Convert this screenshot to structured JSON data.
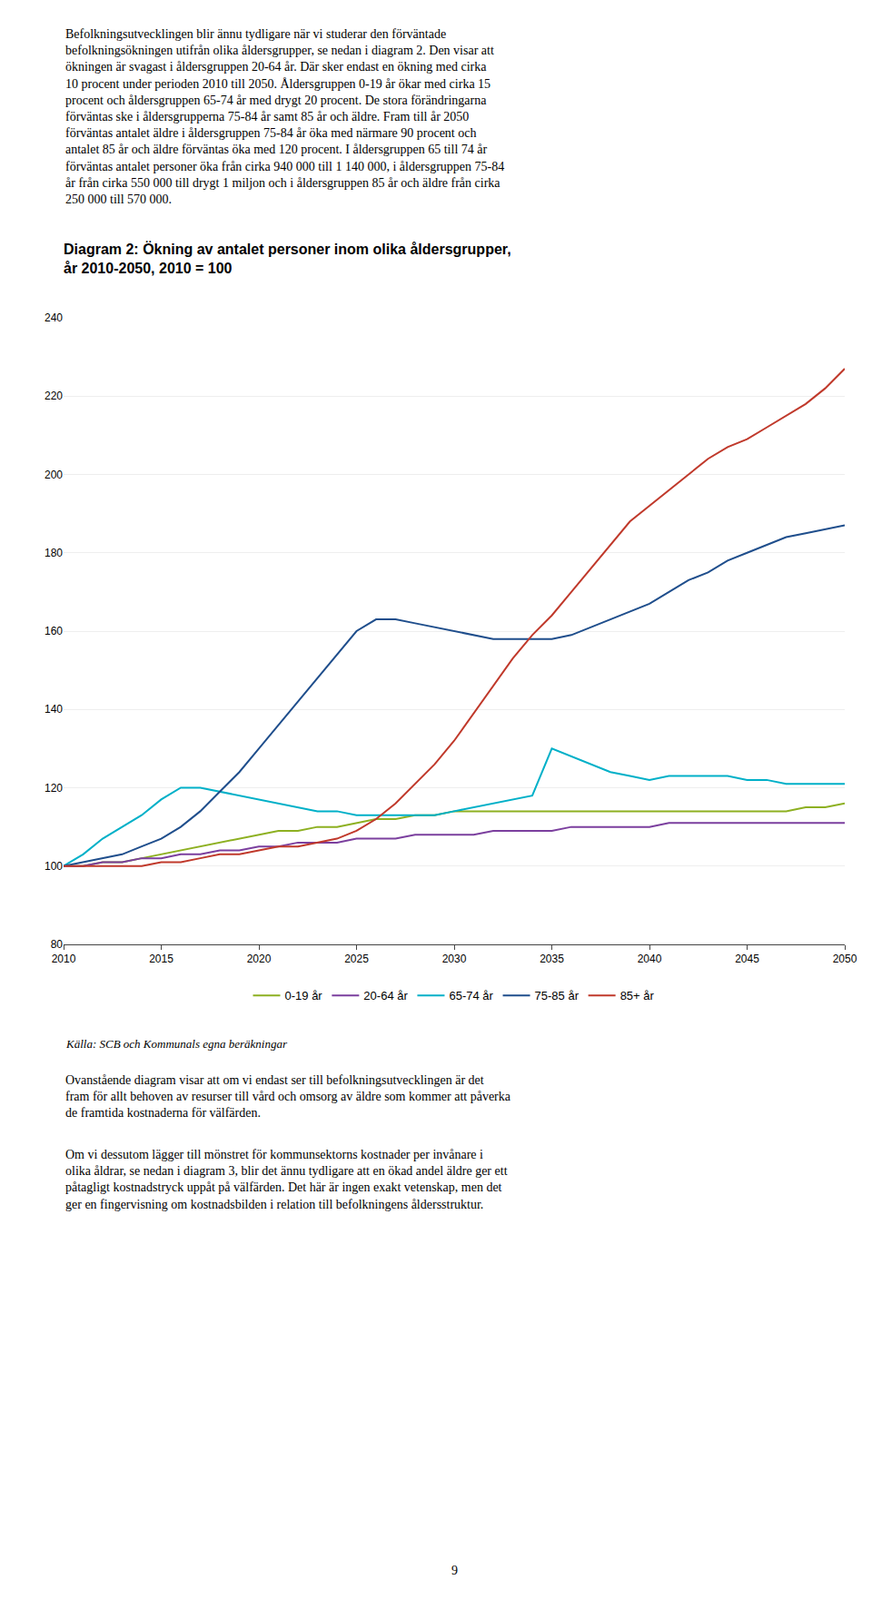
{
  "chart_data": {
    "type": "line",
    "title": "Diagram 2: Ökning av antalet personer inom olika åldersgrupper,",
    "subtitle": "år 2010-2050, 2010 = 100",
    "annotations": [
      "Befolkningsutvecklingen blir ännu tydligare när vi studerar den förväntade\nbefolkningsökningen utifrån olika åldersgrupper, se nedan i diagram 2. Den visar att\nökningen är svagast i åldersgruppen 20-64 år. Där sker endast en ökning med cirka\n10 procent under perioden 2010 till 2050. Åldersgruppen 0-19 år ökar med cirka 15\nprocent och åldersgruppen 65-74 år med drygt 20 procent. De stora förändringarna\nförväntas ske i åldersgrupperna 75-84 år samt 85 år och äldre. Fram till år 2050\nförväntas antalet äldre i åldersgruppen 75-84 år öka med närmare 90 procent och\nantalet 85 år och äldre förväntas öka med 120 procent. I åldersgruppen 65 till 74 år\nförväntas antalet personer öka från cirka 940 000 till 1 140 000, i åldersgruppen 75-84\når från cirka 550 000 till drygt 1 miljon och i åldersgruppen 85 år och äldre från cirka\n250 000 till 570 000.",
      "Källa: SCB och Kommunals egna beräkningar",
      "Ovanstående diagram visar att om vi endast ser till befolkningsutvecklingen är det\nfram för allt behoven av resurser till vård och omsorg av äldre som kommer att påverka\nde framtida kostnaderna för välfärden.",
      "Om vi dessutom lägger till mönstret för kommunsektorns kostnader per invånare i\nolika åldrar, se nedan i diagram 3, blir det ännu tydligare att en ökad andel äldre ger ett\npåtagligt kostnadstryck uppåt på välfärden. Det här är ingen exakt vetenskap, men det\nger en fingervisning om kostnadsbilden i relation till befolkningens åldersstruktur.",
      "9"
    ],
    "x": [
      2010,
      2011,
      2012,
      2013,
      2014,
      2015,
      2016,
      2017,
      2018,
      2019,
      2020,
      2021,
      2022,
      2023,
      2024,
      2025,
      2026,
      2027,
      2028,
      2029,
      2030,
      2031,
      2032,
      2033,
      2034,
      2035,
      2036,
      2037,
      2038,
      2039,
      2040,
      2041,
      2042,
      2043,
      2044,
      2045,
      2046,
      2047,
      2048,
      2049,
      2050
    ],
    "series": [
      {
        "name": "0-19 år",
        "color": "#8db021",
        "values": [
          100,
          100,
          101,
          101,
          102,
          103,
          104,
          105,
          106,
          107,
          108,
          109,
          109,
          110,
          110,
          111,
          112,
          112,
          113,
          113,
          114,
          114,
          114,
          114,
          114,
          114,
          114,
          114,
          114,
          114,
          114,
          114,
          114,
          114,
          114,
          114,
          114,
          114,
          115,
          115,
          116
        ]
      },
      {
        "name": "20-64 år",
        "color": "#7b3f9e",
        "values": [
          100,
          100,
          101,
          101,
          102,
          102,
          103,
          103,
          104,
          104,
          105,
          105,
          106,
          106,
          106,
          107,
          107,
          107,
          108,
          108,
          108,
          108,
          109,
          109,
          109,
          109,
          110,
          110,
          110,
          110,
          110,
          111,
          111,
          111,
          111,
          111,
          111,
          111,
          111,
          111,
          111
        ]
      },
      {
        "name": "65-74 år",
        "color": "#00b0c8",
        "values": [
          100,
          103,
          107,
          110,
          113,
          117,
          120,
          120,
          119,
          118,
          117,
          116,
          115,
          114,
          114,
          113,
          113,
          113,
          113,
          113,
          114,
          115,
          116,
          117,
          118,
          130,
          128,
          126,
          124,
          123,
          122,
          123,
          123,
          123,
          123,
          122,
          122,
          121,
          121,
          121,
          121
        ]
      },
      {
        "name": "75-85 år",
        "color": "#1f4e8c",
        "values": [
          100,
          101,
          102,
          103,
          105,
          107,
          110,
          114,
          119,
          124,
          130,
          136,
          142,
          148,
          154,
          160,
          163,
          163,
          162,
          161,
          160,
          159,
          158,
          158,
          158,
          158,
          159,
          161,
          163,
          165,
          167,
          170,
          173,
          175,
          178,
          180,
          182,
          184,
          185,
          186,
          187
        ]
      },
      {
        "name": "85+ år",
        "color": "#c0392b",
        "values": [
          100,
          100,
          100,
          100,
          100,
          101,
          101,
          102,
          103,
          103,
          104,
          105,
          105,
          106,
          107,
          109,
          112,
          116,
          121,
          126,
          132,
          139,
          146,
          153,
          159,
          164,
          170,
          176,
          182,
          188,
          192,
          196,
          200,
          204,
          207,
          209,
          212,
          215,
          218,
          222,
          227
        ]
      }
    ],
    "xlim": [
      2010,
      2050
    ],
    "xticks": [
      2010,
      2015,
      2020,
      2025,
      2030,
      2035,
      2040,
      2045,
      2050
    ],
    "ylim": [
      80,
      240
    ],
    "yticks": [
      80,
      100,
      120,
      140,
      160,
      180,
      200,
      220,
      240
    ],
    "grid": true,
    "legend": "bottom"
  }
}
